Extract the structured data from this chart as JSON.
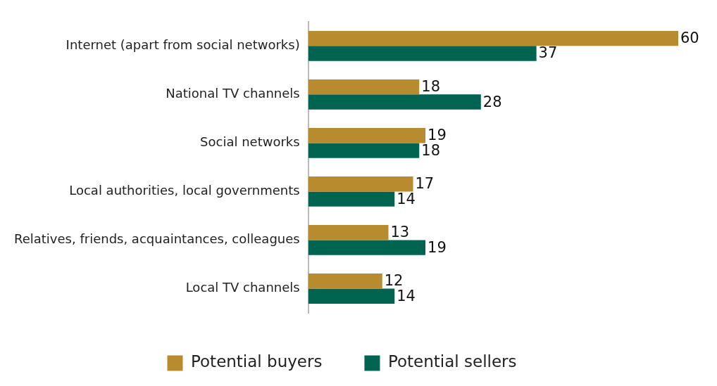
{
  "chart_data": {
    "type": "bar",
    "orientation": "horizontal",
    "categories": [
      "Internet (apart from social networks)",
      "National TV channels",
      "Social networks",
      "Local authorities, local governments",
      "Relatives, friends, acquaintances, colleagues",
      "Local TV channels"
    ],
    "series": [
      {
        "name": "Potential buyers",
        "color": "#b88c2e",
        "values": [
          60,
          18,
          19,
          17,
          13,
          12
        ]
      },
      {
        "name": "Potential sellers",
        "color": "#006450",
        "values": [
          37,
          28,
          18,
          14,
          19,
          14
        ]
      }
    ],
    "data_labels": true,
    "legend": "bottom",
    "tick_labels": "y"
  }
}
